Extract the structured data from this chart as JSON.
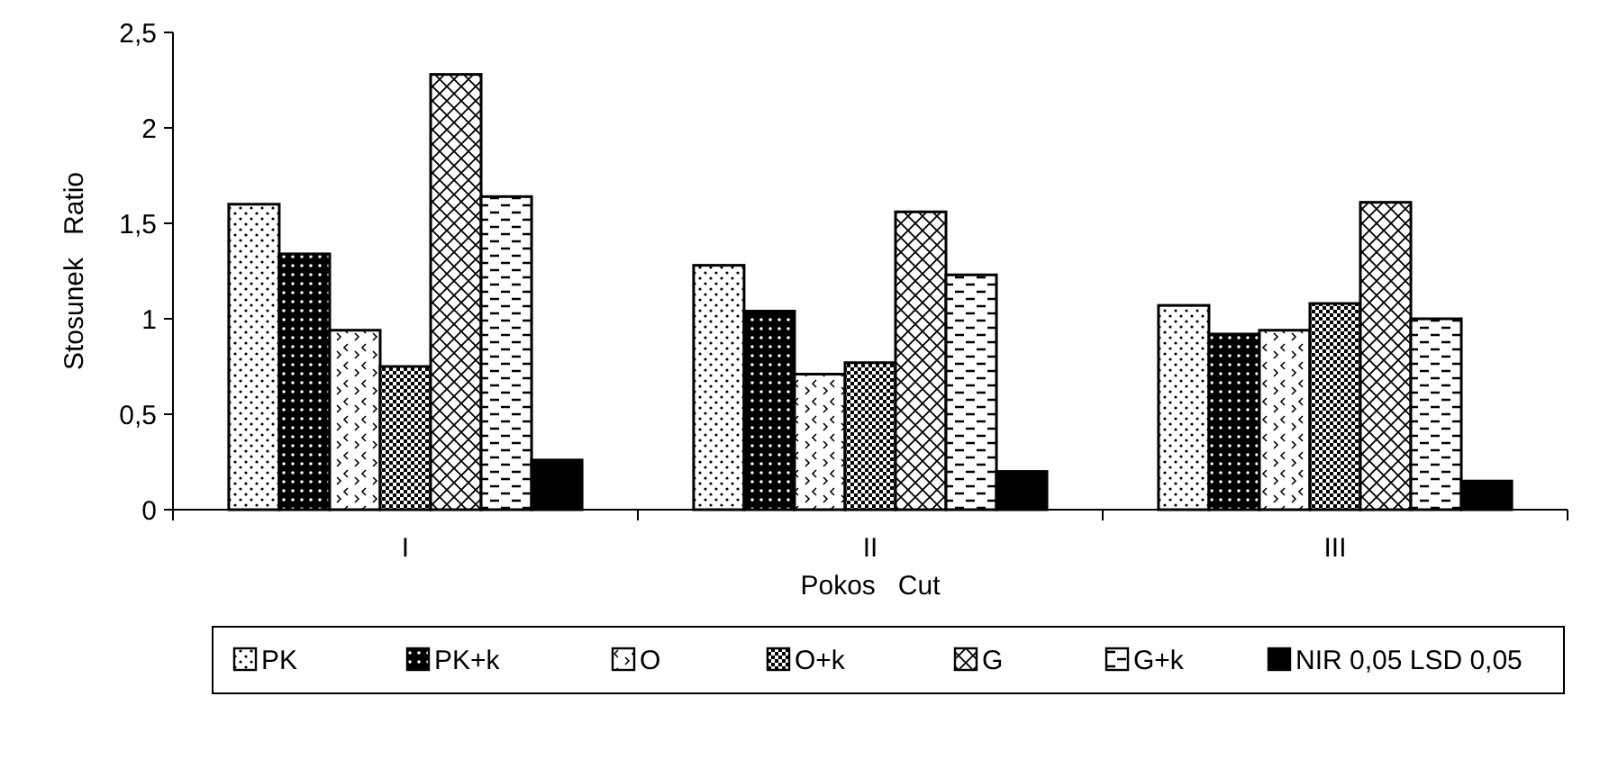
{
  "chart_data": {
    "type": "bar",
    "xlabel": "Pokos   Cut",
    "ylabel": "Stosunek   Ratio",
    "categories": [
      "I",
      "II",
      "III"
    ],
    "series": [
      {
        "name": "PK",
        "color": "#000000",
        "values": [
          1.6,
          1.28,
          1.07
        ]
      },
      {
        "name": "PK+k",
        "color": "#000000",
        "values": [
          1.34,
          1.04,
          0.92
        ]
      },
      {
        "name": "O",
        "color": "#000000",
        "values": [
          0.94,
          0.71,
          0.94
        ]
      },
      {
        "name": "O+k",
        "color": "#000000",
        "values": [
          0.75,
          0.77,
          1.08
        ]
      },
      {
        "name": "G",
        "color": "#000000",
        "values": [
          2.28,
          1.56,
          1.61
        ]
      },
      {
        "name": "G+k",
        "color": "#000000",
        "values": [
          1.64,
          1.23,
          1.0
        ]
      },
      {
        "name": "NIR 0,05 LSD 0,05",
        "color": "#000000",
        "values": [
          0.26,
          0.2,
          0.15
        ]
      }
    ],
    "ylim": [
      0,
      2.5
    ],
    "yticks": [
      0,
      {
        "value": 0.5,
        "label": "0,5"
      },
      1,
      {
        "value": 1.5,
        "label": "1,5"
      },
      2,
      {
        "value": 2.5,
        "label": "2,5"
      }
    ],
    "grid": false,
    "legend": "bottom"
  }
}
